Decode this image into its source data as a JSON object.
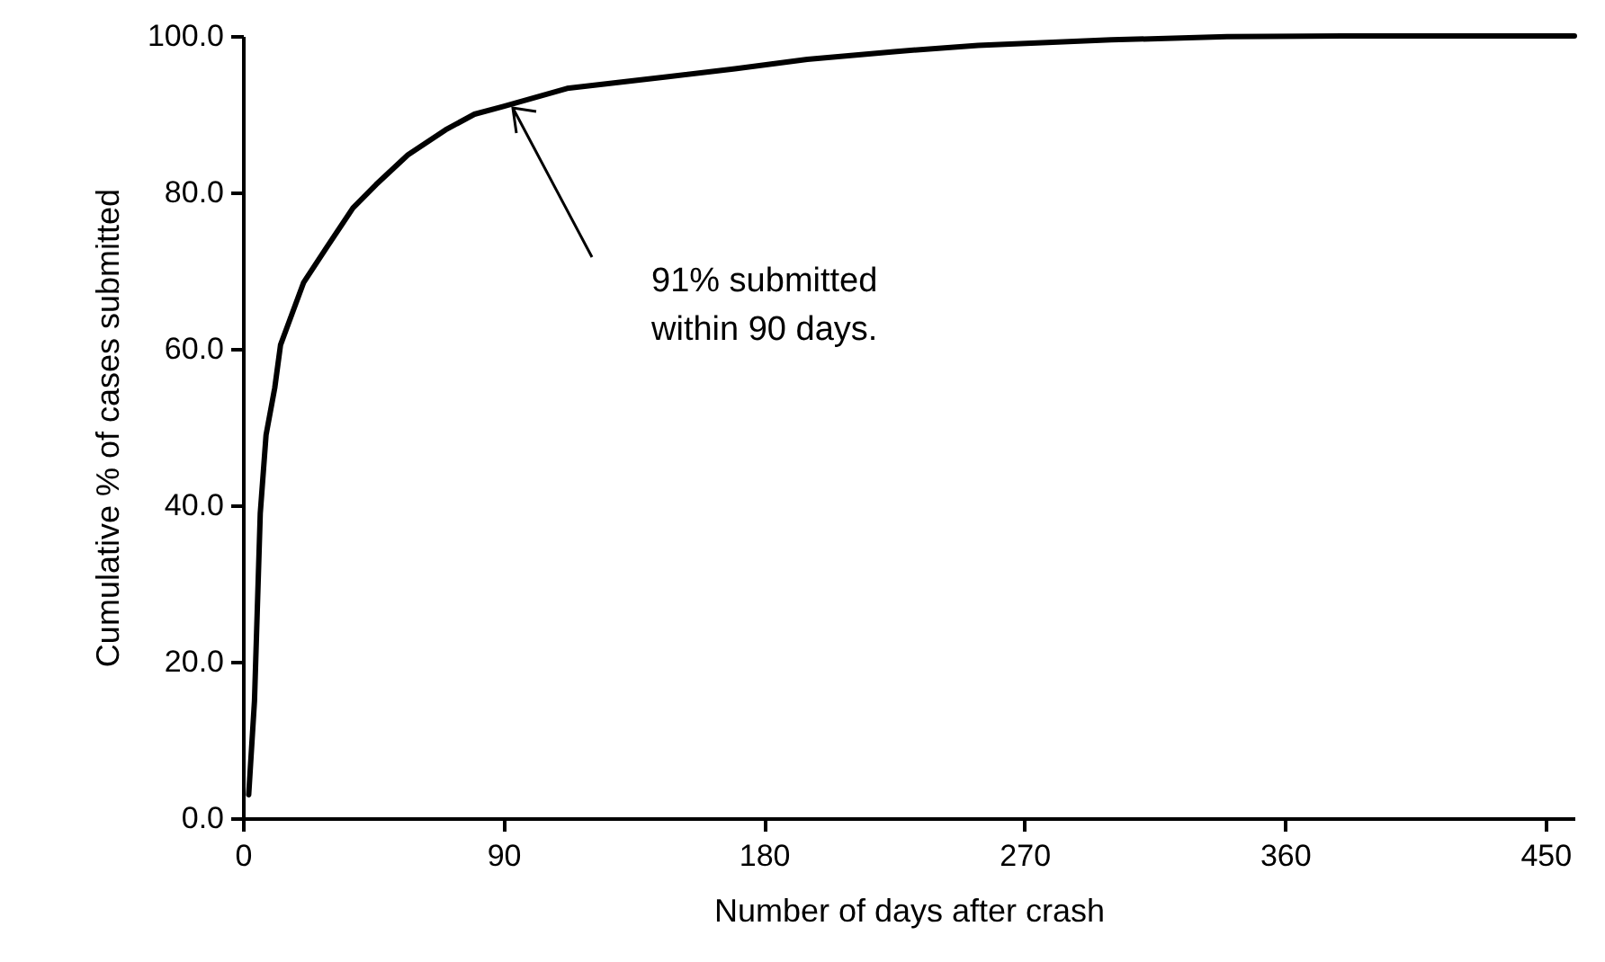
{
  "chart_data": {
    "type": "line",
    "xlabel": "Number of days after crash",
    "ylabel": "Cumulative % of cases submitted",
    "x": [
      2,
      4,
      6,
      8,
      11,
      13,
      16,
      21,
      29,
      38,
      46,
      57,
      70,
      80,
      90,
      112,
      147,
      170,
      195,
      225,
      254,
      300,
      340,
      380,
      460
    ],
    "series": [
      {
        "color": "#000000",
        "values": [
          3,
          15,
          39,
          49,
          55,
          60.5,
          63.5,
          68.5,
          73,
          78,
          81,
          84.8,
          88,
          90,
          91,
          93.3,
          94.8,
          95.8,
          97,
          98,
          98.8,
          99.5,
          99.9,
          100,
          100
        ]
      }
    ],
    "xlim": [
      0,
      460
    ],
    "xticks": [
      0,
      90,
      180,
      270,
      360,
      450
    ],
    "ylim": [
      0,
      100
    ],
    "yticks": [
      {
        "value": 0,
        "label": "0.0"
      },
      {
        "value": 20,
        "label": "20.0"
      },
      {
        "value": 40,
        "label": "40.0"
      },
      {
        "value": 60,
        "label": "60.0"
      },
      {
        "value": 80,
        "label": "80.0"
      },
      {
        "value": 100,
        "label": "100.0"
      }
    ],
    "annotations": [
      "91% submitted\nwithin 90 days."
    ],
    "marker": "none",
    "line_style": "solid",
    "grid": false
  }
}
